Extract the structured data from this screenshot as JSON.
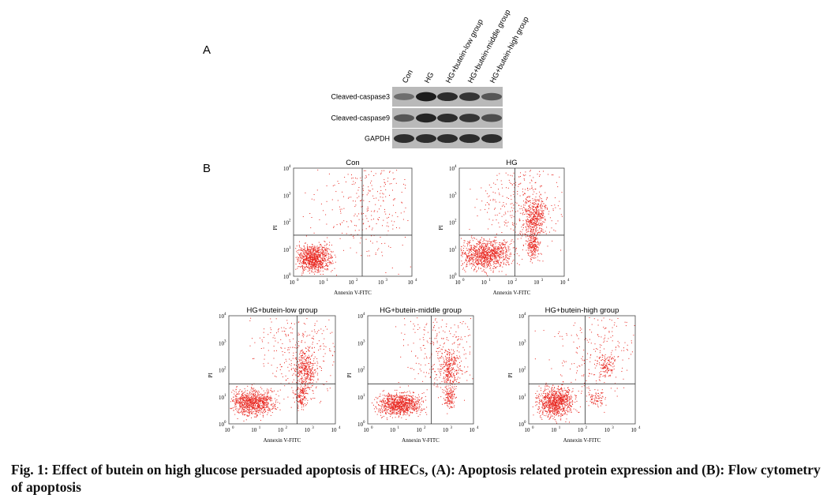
{
  "panel_a": {
    "label": "A",
    "lanes": [
      "Con",
      "HG",
      "HG+butein-low group",
      "HG+butein-middle group",
      "HG+butein-high group"
    ],
    "proteins": [
      "Cleaved-caspase3",
      "Cleaved-caspase9",
      "GAPDH"
    ]
  },
  "panel_b": {
    "label": "B",
    "plots": [
      {
        "title": "Con"
      },
      {
        "title": "HG"
      },
      {
        "title": "HG+butein-low group"
      },
      {
        "title": "HG+butein-middle group"
      },
      {
        "title": "HG+butein-high group"
      }
    ],
    "x_axis_label": "Annexin V-FITC",
    "y_axis_label": "PI",
    "tick_base": "10",
    "tick_exponents": [
      "0",
      "1",
      "2",
      "3",
      "4"
    ]
  },
  "caption": "Fig. 1: Effect of butein on high glucose persuaded apoptosis of HRECs, (A): Apoptosis related protein expression and (B): Flow cytometry of apoptosis"
}
